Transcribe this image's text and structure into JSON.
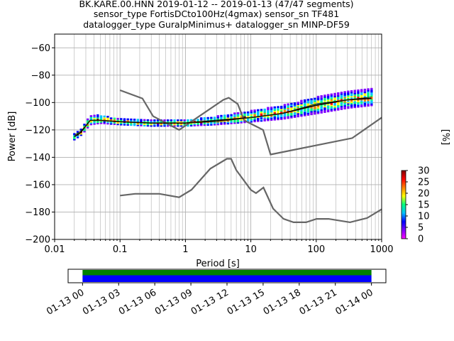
{
  "title": {
    "line1": "BK.KARE.00.HNN   2019-01-12 -- 2019-01-13  (47/47 segments)",
    "line2": "sensor_type FortisDCto100Hz(4gmax) sensor_sn TF481",
    "line3": "datalogger_type GuralpMinimus+ datalogger_sn MINP-DF59"
  },
  "chart_data": [
    {
      "type": "heatmap",
      "xlabel": "Period [s]",
      "ylabel": "Power [dB]",
      "xscale": "log",
      "xlim": [
        0.01,
        1000
      ],
      "ylim": [
        -200,
        -50
      ],
      "xticks": [
        {
          "value": 0.01,
          "label": "0.01"
        },
        {
          "value": 0.1,
          "label": "0.1"
        },
        {
          "value": 1,
          "label": "1"
        },
        {
          "value": 10,
          "label": "10"
        },
        {
          "value": 100,
          "label": "100"
        },
        {
          "value": 1000,
          "label": "1000"
        }
      ],
      "yticks": [
        {
          "value": -60,
          "label": "−60"
        },
        {
          "value": -80,
          "label": "−80"
        },
        {
          "value": -100,
          "label": "−100"
        },
        {
          "value": -120,
          "label": "−120"
        },
        {
          "value": -140,
          "label": "−140"
        },
        {
          "value": -160,
          "label": "−160"
        },
        {
          "value": -180,
          "label": "−180"
        },
        {
          "value": -200,
          "label": "−200"
        }
      ],
      "grid": true,
      "colorbar": {
        "label": "[%]",
        "range": [
          0,
          30
        ],
        "ticks": [
          {
            "value": 0,
            "label": "0"
          },
          {
            "value": 5,
            "label": "5"
          },
          {
            "value": 10,
            "label": "10"
          },
          {
            "value": 15,
            "label": "15"
          },
          {
            "value": 20,
            "label": "20"
          },
          {
            "value": 25,
            "label": "25"
          },
          {
            "value": 30,
            "label": "30"
          }
        ],
        "colors": [
          "#ffffff",
          "#ff00ff",
          "#8000ff",
          "#0000ff",
          "#00c0ff",
          "#00ff80",
          "#ffff00",
          "#ff8000",
          "#ff0000",
          "#800000"
        ]
      },
      "density_band": [
        {
          "x": 0.02,
          "y": -125,
          "spread": 2
        },
        {
          "x": 0.025,
          "y": -122,
          "spread": 2
        },
        {
          "x": 0.03,
          "y": -117,
          "spread": 3
        },
        {
          "x": 0.035,
          "y": -113,
          "spread": 3
        },
        {
          "x": 0.05,
          "y": -112,
          "spread": 3
        },
        {
          "x": 0.1,
          "y": -114,
          "spread": 2
        },
        {
          "x": 0.3,
          "y": -115,
          "spread": 2
        },
        {
          "x": 1,
          "y": -115,
          "spread": 2
        },
        {
          "x": 3,
          "y": -113,
          "spread": 3
        },
        {
          "x": 10,
          "y": -110,
          "spread": 4
        },
        {
          "x": 30,
          "y": -107,
          "spread": 5
        },
        {
          "x": 100,
          "y": -102,
          "spread": 6
        },
        {
          "x": 300,
          "y": -98,
          "spread": 6
        },
        {
          "x": 700,
          "y": -96,
          "spread": 6
        }
      ],
      "mean_curve": [
        [
          0.02,
          -125
        ],
        [
          0.025,
          -122
        ],
        [
          0.03,
          -117
        ],
        [
          0.035,
          -113
        ],
        [
          0.05,
          -113
        ],
        [
          0.1,
          -114
        ],
        [
          0.3,
          -115
        ],
        [
          1,
          -115
        ],
        [
          3,
          -113
        ],
        [
          10,
          -111
        ],
        [
          30,
          -108
        ],
        [
          100,
          -102
        ],
        [
          300,
          -98
        ],
        [
          700,
          -97
        ]
      ],
      "median_curve": [
        [
          0.02,
          -124
        ],
        [
          0.025,
          -121
        ],
        [
          0.03,
          -117
        ],
        [
          0.035,
          -113
        ],
        [
          0.05,
          -113
        ],
        [
          0.1,
          -114
        ],
        [
          0.3,
          -115
        ],
        [
          1,
          -115
        ],
        [
          3,
          -114
        ],
        [
          10,
          -111
        ],
        [
          30,
          -108
        ],
        [
          100,
          -101
        ],
        [
          300,
          -98
        ],
        [
          700,
          -96
        ]
      ],
      "noise_models": [
        {
          "role": "high",
          "points": [
            [
              0.1,
              -91
            ],
            [
              0.22,
              -97
            ],
            [
              0.32,
              -110
            ],
            [
              0.8,
              -120
            ],
            [
              3.8,
              -98
            ],
            [
              4.6,
              -96.5
            ],
            [
              6.3,
              -101
            ],
            [
              7.9,
              -113
            ],
            [
              15.4,
              -120
            ],
            [
              20,
              -138
            ],
            [
              354.8,
              -126
            ],
            [
              1000,
              -111
            ]
          ]
        },
        {
          "role": "low",
          "points": [
            [
              0.1,
              -168
            ],
            [
              0.17,
              -166.7
            ],
            [
              0.4,
              -166.7
            ],
            [
              0.8,
              -169.2
            ],
            [
              1.24,
              -163.7
            ],
            [
              2.4,
              -148.3
            ],
            [
              4.3,
              -141.1
            ],
            [
              5,
              -141.1
            ],
            [
              6,
              -149.4
            ],
            [
              10,
              -163.8
            ],
            [
              12,
              -166.2
            ],
            [
              15.6,
              -162.1
            ],
            [
              21.9,
              -177.5
            ],
            [
              31.6,
              -185
            ],
            [
              45,
              -187.5
            ],
            [
              70,
              -187.5
            ],
            [
              101,
              -185
            ],
            [
              154,
              -185
            ],
            [
              328,
              -187.5
            ],
            [
              600,
              -184.4
            ],
            [
              1000,
              -178
            ]
          ]
        }
      ]
    },
    {
      "type": "timeline",
      "tick_labels": [
        "01-13 00",
        "01-13 03",
        "01-13 06",
        "01-13 09",
        "01-13 12",
        "01-13 15",
        "01-13 18",
        "01-13 21",
        "01-14 00"
      ],
      "tick_hours": [
        0,
        3,
        6,
        9,
        12,
        15,
        18,
        21,
        24
      ],
      "xlim_hours": [
        -1.2,
        25.2
      ],
      "coverage": [
        {
          "name": "data",
          "start_hour": 0,
          "end_hour": 24,
          "color": "#0000ff"
        },
        {
          "name": "processed",
          "start_hour": 0,
          "end_hour": 24,
          "color": "#008000"
        }
      ]
    }
  ]
}
